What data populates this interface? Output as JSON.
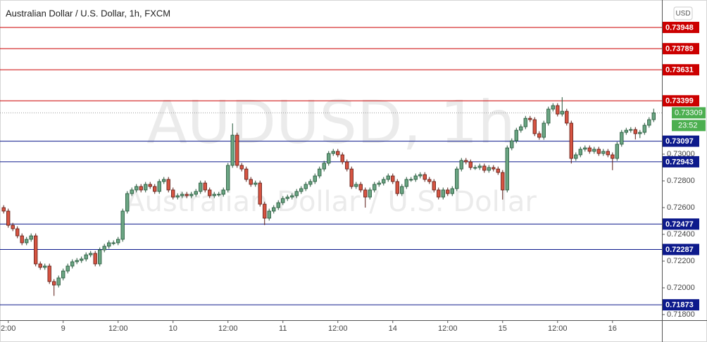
{
  "chart_data": {
    "type": "candlestick",
    "title": "Australian Dollar / U.S. Dollar, 1h, FXCM",
    "watermark": [
      "AUDUSD, 1h",
      "Australian Dollar / U.S. Dollar"
    ],
    "currency": "USD",
    "countdown": "23:52",
    "last_price": 0.73309,
    "colors": {
      "up": "#6ba583",
      "down": "#d75442",
      "up_border": "#225437",
      "down_border": "#5b1a13",
      "last": "#4caf50"
    },
    "xlim": [
      -0.8,
      143.8
    ],
    "ylim": [
      0.71758,
      0.74153
    ],
    "xticks": [
      {
        "value": 1,
        "label": "2:00"
      },
      {
        "value": 13,
        "label": "9"
      },
      {
        "value": 25,
        "label": "12:00"
      },
      {
        "value": 37,
        "label": "10"
      },
      {
        "value": 49,
        "label": "12:00"
      },
      {
        "value": 61,
        "label": "11"
      },
      {
        "value": 73,
        "label": "12:00"
      },
      {
        "value": 85,
        "label": "14"
      },
      {
        "value": 97,
        "label": "12:00"
      },
      {
        "value": 109,
        "label": "15"
      },
      {
        "value": 121,
        "label": "12:00"
      },
      {
        "value": 133,
        "label": "16"
      }
    ],
    "yticks": [
      {
        "value": 0.718,
        "label": "0.71800"
      },
      {
        "value": 0.72,
        "label": "0.72000"
      },
      {
        "value": 0.722,
        "label": "0.72200"
      },
      {
        "value": 0.724,
        "label": "0.72400"
      },
      {
        "value": 0.726,
        "label": "0.72600"
      },
      {
        "value": 0.728,
        "label": "0.72800"
      },
      {
        "value": 0.73,
        "label": "0.73000"
      }
    ],
    "levels": [
      {
        "value": 0.73948,
        "color": "#cc0000"
      },
      {
        "value": 0.73789,
        "color": "#cc0000"
      },
      {
        "value": 0.73631,
        "color": "#cc0000"
      },
      {
        "value": 0.73399,
        "color": "#cc0000"
      },
      {
        "value": 0.73097,
        "color": "#0d1a8c"
      },
      {
        "value": 0.72943,
        "color": "#0d1a8c"
      },
      {
        "value": 0.72477,
        "color": "#0d1a8c"
      },
      {
        "value": 0.72287,
        "color": "#0d1a8c"
      },
      {
        "value": 0.71873,
        "color": "#0d1a8c"
      }
    ],
    "open": [
      0.726,
      0.72574,
      0.72468,
      0.72442,
      0.72389,
      0.72337,
      0.72363,
      0.72389,
      0.72179,
      0.72153,
      0.72163,
      0.72047,
      0.72021,
      0.72074,
      0.72126,
      0.72163,
      0.72195,
      0.72205,
      0.72216,
      0.72247,
      0.72258,
      0.72179,
      0.72284,
      0.72311,
      0.72337,
      0.72337,
      0.72363,
      0.72574,
      0.72705,
      0.72732,
      0.72758,
      0.72732,
      0.72774,
      0.72758,
      0.72721,
      0.72795,
      0.72811,
      0.72732,
      0.72679,
      0.72689,
      0.727,
      0.72689,
      0.727,
      0.72721,
      0.72784,
      0.72732,
      0.72689,
      0.727,
      0.727,
      0.72732,
      0.72916,
      0.73142,
      0.72916,
      0.72889,
      0.72811,
      0.72774,
      0.72784,
      0.72626,
      0.72521,
      0.72574,
      0.726,
      0.72637,
      0.72668,
      0.72679,
      0.72689,
      0.72721,
      0.72742,
      0.72774,
      0.72795,
      0.72837,
      0.72889,
      0.72932,
      0.73005,
      0.73021,
      0.72995,
      0.72942,
      0.72889,
      0.72758,
      0.72774,
      0.72732,
      0.72679,
      0.72732,
      0.72774,
      0.72784,
      0.72811,
      0.72837,
      0.72795,
      0.72705,
      0.72758,
      0.72811,
      0.72811,
      0.72837,
      0.72847,
      0.72811,
      0.72795,
      0.72732,
      0.72679,
      0.72732,
      0.72705,
      0.72742,
      0.72889,
      0.72953,
      0.72942,
      0.729,
      0.729,
      0.72911,
      0.72879,
      0.729,
      0.72889,
      0.72863,
      0.72732,
      0.73047,
      0.731,
      0.73179,
      0.73205,
      0.73268,
      0.73258,
      0.73153,
      0.73126,
      0.73232,
      0.73337,
      0.73363,
      0.733,
      0.73321,
      0.73232,
      0.72968,
      0.72995,
      0.73037,
      0.73047,
      0.73021,
      0.73037,
      0.73005,
      0.73021,
      0.72995,
      0.72968,
      0.73074,
      0.73163,
      0.73179,
      0.73184,
      0.73153,
      0.73163,
      0.73216,
      0.73258
    ],
    "high": [
      0.72618,
      0.72592,
      0.72486,
      0.7246,
      0.72407,
      0.72381,
      0.72407,
      0.72407,
      0.72197,
      0.72181,
      0.72181,
      0.72065,
      0.72092,
      0.72144,
      0.72181,
      0.72213,
      0.72223,
      0.72234,
      0.72265,
      0.72276,
      0.72276,
      0.72302,
      0.72329,
      0.72355,
      0.72355,
      0.72381,
      0.72592,
      0.72723,
      0.7275,
      0.72776,
      0.72776,
      0.72792,
      0.72792,
      0.72776,
      0.72813,
      0.72829,
      0.72829,
      0.7275,
      0.72707,
      0.72718,
      0.72718,
      0.72718,
      0.72739,
      0.72802,
      0.72802,
      0.7275,
      0.72718,
      0.72718,
      0.7275,
      0.72934,
      0.7323,
      0.7316,
      0.72934,
      0.72907,
      0.72829,
      0.72802,
      0.72802,
      0.72644,
      0.72592,
      0.72618,
      0.72655,
      0.72686,
      0.72697,
      0.72707,
      0.72739,
      0.7276,
      0.72792,
      0.72813,
      0.72855,
      0.72907,
      0.7295,
      0.73023,
      0.73039,
      0.73039,
      0.73013,
      0.7296,
      0.72907,
      0.72792,
      0.72792,
      0.7275,
      0.7275,
      0.72792,
      0.72802,
      0.72829,
      0.72855,
      0.72855,
      0.72813,
      0.72776,
      0.72829,
      0.72829,
      0.72855,
      0.72865,
      0.72865,
      0.72829,
      0.72813,
      0.7275,
      0.7275,
      0.7275,
      0.7276,
      0.72907,
      0.72971,
      0.72971,
      0.7296,
      0.72918,
      0.72929,
      0.72929,
      0.72918,
      0.72918,
      0.72907,
      0.72881,
      0.73065,
      0.73118,
      0.73197,
      0.73223,
      0.73286,
      0.73286,
      0.73276,
      0.73171,
      0.7325,
      0.73355,
      0.73381,
      0.73381,
      0.73426,
      0.73339,
      0.7325,
      0.73013,
      0.73055,
      0.73065,
      0.73065,
      0.73055,
      0.73055,
      0.73039,
      0.73039,
      0.73013,
      0.73092,
      0.73181,
      0.73197,
      0.73202,
      0.73202,
      0.73181,
      0.73234,
      0.73276,
      0.7334
    ],
    "low": [
      0.72556,
      0.7245,
      0.72424,
      0.72371,
      0.72319,
      0.72319,
      0.72345,
      0.72161,
      0.72135,
      0.72135,
      0.72029,
      0.7194,
      0.72003,
      0.72056,
      0.72108,
      0.72145,
      0.72177,
      0.72187,
      0.72198,
      0.72229,
      0.72161,
      0.72161,
      0.72266,
      0.72293,
      0.72319,
      0.72319,
      0.72345,
      0.72556,
      0.72687,
      0.72714,
      0.72714,
      0.72714,
      0.7274,
      0.72703,
      0.72703,
      0.72777,
      0.72714,
      0.72661,
      0.72661,
      0.72671,
      0.72671,
      0.72671,
      0.72682,
      0.72703,
      0.72714,
      0.72671,
      0.72671,
      0.72682,
      0.72682,
      0.72714,
      0.72898,
      0.72898,
      0.72871,
      0.72793,
      0.72756,
      0.72756,
      0.72608,
      0.7247,
      0.72503,
      0.72556,
      0.72582,
      0.72619,
      0.7265,
      0.72661,
      0.72671,
      0.72703,
      0.72724,
      0.72756,
      0.72777,
      0.72819,
      0.72871,
      0.72914,
      0.72987,
      0.72977,
      0.72924,
      0.72871,
      0.7274,
      0.7274,
      0.72714,
      0.726,
      0.72661,
      0.72714,
      0.72756,
      0.72766,
      0.72793,
      0.72777,
      0.72687,
      0.72687,
      0.7274,
      0.72793,
      0.72793,
      0.72819,
      0.72793,
      0.72777,
      0.72714,
      0.72661,
      0.72661,
      0.72687,
      0.72687,
      0.72724,
      0.72871,
      0.72924,
      0.72882,
      0.72882,
      0.72882,
      0.72861,
      0.72861,
      0.72871,
      0.72845,
      0.7266,
      0.72714,
      0.73029,
      0.73082,
      0.73161,
      0.73187,
      0.7324,
      0.73135,
      0.73108,
      0.73108,
      0.73214,
      0.73319,
      0.73282,
      0.73282,
      0.73214,
      0.7293,
      0.7295,
      0.72977,
      0.73019,
      0.73003,
      0.73003,
      0.72987,
      0.72987,
      0.72977,
      0.7288,
      0.7295,
      0.73056,
      0.73145,
      0.73161,
      0.7311,
      0.7312,
      0.73145,
      0.73198,
      0.7324
    ],
    "close": [
      0.72574,
      0.72468,
      0.72442,
      0.72389,
      0.72337,
      0.72363,
      0.72389,
      0.72179,
      0.72153,
      0.72163,
      0.72047,
      0.72021,
      0.72074,
      0.72126,
      0.72163,
      0.72195,
      0.72205,
      0.72216,
      0.72247,
      0.72258,
      0.72179,
      0.72284,
      0.72311,
      0.72337,
      0.72337,
      0.72363,
      0.72574,
      0.72705,
      0.72732,
      0.72758,
      0.72732,
      0.72774,
      0.72758,
      0.72721,
      0.72795,
      0.72811,
      0.72732,
      0.72679,
      0.72689,
      0.727,
      0.72689,
      0.727,
      0.72721,
      0.72784,
      0.72732,
      0.72689,
      0.727,
      0.727,
      0.72732,
      0.72916,
      0.73142,
      0.72916,
      0.72889,
      0.72811,
      0.72774,
      0.72784,
      0.72626,
      0.72521,
      0.72574,
      0.726,
      0.72637,
      0.72668,
      0.72679,
      0.72689,
      0.72721,
      0.72742,
      0.72774,
      0.72795,
      0.72837,
      0.72889,
      0.72932,
      0.73005,
      0.73021,
      0.72995,
      0.72942,
      0.72889,
      0.72758,
      0.72774,
      0.72732,
      0.72679,
      0.72732,
      0.72774,
      0.72784,
      0.72811,
      0.72837,
      0.72795,
      0.72705,
      0.72758,
      0.72811,
      0.72811,
      0.72837,
      0.72847,
      0.72811,
      0.72795,
      0.72732,
      0.72679,
      0.72732,
      0.72705,
      0.72742,
      0.72889,
      0.72953,
      0.72942,
      0.729,
      0.729,
      0.72911,
      0.72879,
      0.729,
      0.72889,
      0.72863,
      0.72732,
      0.73047,
      0.731,
      0.73179,
      0.73205,
      0.73268,
      0.73258,
      0.73153,
      0.73126,
      0.73232,
      0.73337,
      0.73363,
      0.733,
      0.73321,
      0.73232,
      0.72968,
      0.72995,
      0.73037,
      0.73047,
      0.73021,
      0.73037,
      0.73005,
      0.73021,
      0.72995,
      0.72968,
      0.73074,
      0.73163,
      0.73179,
      0.73184,
      0.73153,
      0.73163,
      0.73216,
      0.73258,
      0.73309
    ]
  }
}
